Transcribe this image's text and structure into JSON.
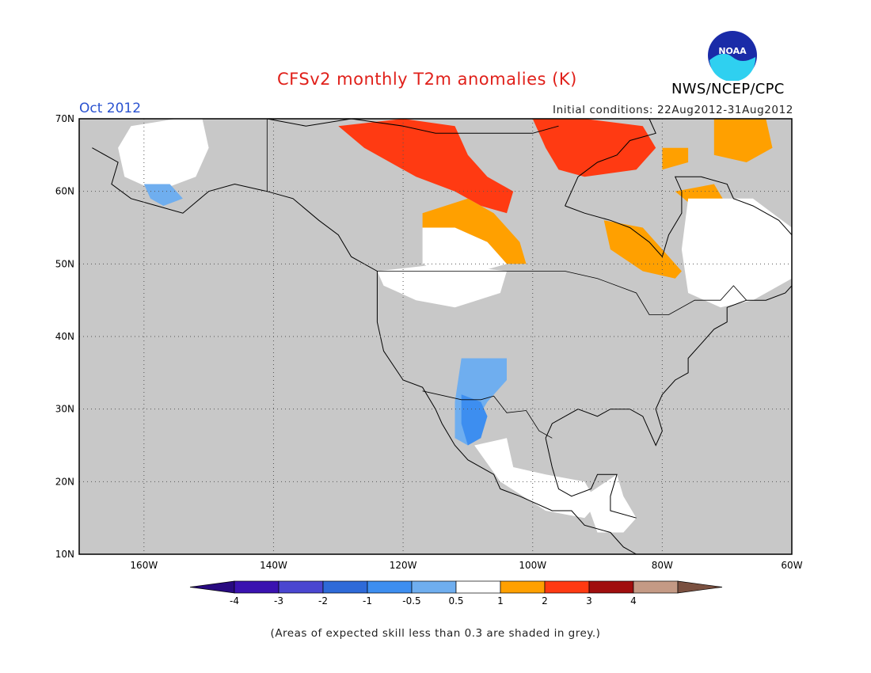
{
  "title": "CFSv2 monthly T2m anomalies (K)",
  "valid_month": "Oct 2012",
  "initial_conditions": "Initial conditions: 22Aug2012-31Aug2012",
  "agency": "NWS/NCEP/CPC",
  "logo_text": "NOAA",
  "footnote": "(Areas of expected skill less than 0.3 are shaded in grey.)",
  "map": {
    "lon_range": [
      -170,
      -60
    ],
    "lat_range": [
      10,
      70
    ],
    "lon_ticks": [
      {
        "value": -160,
        "label": "160W"
      },
      {
        "value": -140,
        "label": "140W"
      },
      {
        "value": -120,
        "label": "120W"
      },
      {
        "value": -100,
        "label": "100W"
      },
      {
        "value": -80,
        "label": "80W"
      },
      {
        "value": -60,
        "label": "60W"
      }
    ],
    "lat_ticks": [
      {
        "value": 10,
        "label": "10N"
      },
      {
        "value": 20,
        "label": "20N"
      },
      {
        "value": 30,
        "label": "30N"
      },
      {
        "value": 40,
        "label": "40N"
      },
      {
        "value": 50,
        "label": "50N"
      },
      {
        "value": 60,
        "label": "60N"
      },
      {
        "value": 70,
        "label": "70N"
      }
    ],
    "low_skill_color": "#c8c8c8",
    "neutral_color": "#ffffff",
    "anomaly_regions": [
      {
        "name": "alaska-neutral",
        "color": "#ffffff",
        "points": [
          [
            -162,
            69
          ],
          [
            -155,
            70
          ],
          [
            -151,
            70
          ],
          [
            -150,
            66
          ],
          [
            -152,
            62
          ],
          [
            -158,
            60
          ],
          [
            -163,
            62
          ],
          [
            -164,
            66
          ]
        ]
      },
      {
        "name": "alaska-cool",
        "color": "#6faeef",
        "points": [
          [
            -160,
            61
          ],
          [
            -156,
            61
          ],
          [
            -154,
            59
          ],
          [
            -157,
            58
          ],
          [
            -159,
            59
          ]
        ]
      },
      {
        "name": "hudson-warm-inner",
        "color": "#ff3a12",
        "points": [
          [
            -130,
            69
          ],
          [
            -120,
            70
          ],
          [
            -112,
            69
          ],
          [
            -110,
            65
          ],
          [
            -107,
            62
          ],
          [
            -103,
            60
          ],
          [
            -104,
            57
          ],
          [
            -108,
            58
          ],
          [
            -112,
            60
          ],
          [
            -118,
            62
          ],
          [
            -122,
            64
          ],
          [
            -126,
            66
          ]
        ]
      },
      {
        "name": "hudson-warm-outer",
        "color": "#ffa000",
        "points": [
          [
            -117,
            57
          ],
          [
            -110,
            59
          ],
          [
            -106,
            57
          ],
          [
            -102,
            53
          ],
          [
            -101,
            50
          ],
          [
            -104,
            50
          ],
          [
            -107,
            53
          ],
          [
            -112,
            55
          ],
          [
            -117,
            55
          ]
        ]
      },
      {
        "name": "prairie-neutral",
        "color": "#ffffff",
        "points": [
          [
            -117,
            55
          ],
          [
            -112,
            55
          ],
          [
            -107,
            53
          ],
          [
            -104,
            50
          ],
          [
            -108,
            49
          ],
          [
            -112,
            48
          ],
          [
            -117,
            50
          ]
        ]
      },
      {
        "name": "arctic-warm-east",
        "color": "#ff3a12",
        "points": [
          [
            -100,
            70
          ],
          [
            -92,
            70
          ],
          [
            -83,
            69
          ],
          [
            -81,
            66
          ],
          [
            -84,
            63
          ],
          [
            -92,
            62
          ],
          [
            -96,
            63
          ],
          [
            -98,
            66
          ]
        ]
      },
      {
        "name": "baffin-warm",
        "color": "#ffa000",
        "points": [
          [
            -80,
            66
          ],
          [
            -76,
            66
          ],
          [
            -76,
            64
          ],
          [
            -80,
            63
          ]
        ]
      },
      {
        "name": "labrador-warm",
        "color": "#ffa000",
        "points": [
          [
            -78,
            60
          ],
          [
            -72,
            61
          ],
          [
            -70,
            58
          ],
          [
            -74,
            57
          ]
        ]
      },
      {
        "name": "greenland-warm",
        "color": "#ffa000",
        "points": [
          [
            -72,
            70
          ],
          [
            -64,
            70
          ],
          [
            -63,
            66
          ],
          [
            -67,
            64
          ],
          [
            -72,
            65
          ]
        ]
      },
      {
        "name": "quebec-neutral",
        "color": "#ffffff",
        "points": [
          [
            -76,
            59
          ],
          [
            -66,
            59
          ],
          [
            -60,
            55
          ],
          [
            -60,
            48
          ],
          [
            -66,
            45
          ],
          [
            -71,
            44
          ],
          [
            -76,
            46
          ],
          [
            -77,
            52
          ]
        ]
      },
      {
        "name": "ontario-warm",
        "color": "#ffa000",
        "points": [
          [
            -89,
            56
          ],
          [
            -83,
            55
          ],
          [
            -80,
            52
          ],
          [
            -77,
            49
          ],
          [
            -78,
            48
          ],
          [
            -83,
            49
          ],
          [
            -88,
            52
          ]
        ]
      },
      {
        "name": "northwest-neutral",
        "color": "#ffffff",
        "points": [
          [
            -124,
            49
          ],
          [
            -114,
            50
          ],
          [
            -104,
            49
          ],
          [
            -105,
            46
          ],
          [
            -112,
            44
          ],
          [
            -118,
            45
          ],
          [
            -123,
            47
          ]
        ]
      },
      {
        "name": "southwest-cool",
        "color": "#6faeef",
        "points": [
          [
            -111,
            37
          ],
          [
            -104,
            37
          ],
          [
            -104,
            34
          ],
          [
            -107,
            31
          ],
          [
            -109,
            28
          ],
          [
            -110,
            25
          ],
          [
            -112,
            26
          ],
          [
            -112,
            31
          ]
        ]
      },
      {
        "name": "sonora-cool",
        "color": "#3d8ef0",
        "points": [
          [
            -111,
            32
          ],
          [
            -108,
            31
          ],
          [
            -107,
            29
          ],
          [
            -108,
            26
          ],
          [
            -110,
            25
          ],
          [
            -111,
            28
          ]
        ]
      },
      {
        "name": "mexico-neutral",
        "color": "#ffffff",
        "points": [
          [
            -109,
            25
          ],
          [
            -104,
            26
          ],
          [
            -103,
            22
          ],
          [
            -98,
            21
          ],
          [
            -92,
            20
          ],
          [
            -90,
            17
          ],
          [
            -92,
            15
          ],
          [
            -98,
            16
          ],
          [
            -105,
            20
          ]
        ]
      },
      {
        "name": "central-america-neutral",
        "color": "#ffffff",
        "points": [
          [
            -92,
            18
          ],
          [
            -87,
            21
          ],
          [
            -86,
            18
          ],
          [
            -84,
            15
          ],
          [
            -86,
            13
          ],
          [
            -90,
            13
          ]
        ]
      }
    ]
  },
  "legend": {
    "bins": [
      {
        "label": "-4",
        "color": "#3a12b0"
      },
      {
        "label": "-3",
        "color": "#4a46d0"
      },
      {
        "label": "-2",
        "color": "#2e6ad8"
      },
      {
        "label": "-1",
        "color": "#3d8ef0"
      },
      {
        "label": "-0.5",
        "color": "#6faeef"
      },
      {
        "label": "0.5",
        "color": "#ffffff"
      },
      {
        "label": "1",
        "color": "#ffa000"
      },
      {
        "label": "2",
        "color": "#ff3a12"
      },
      {
        "label": "3",
        "color": "#a00e0e"
      },
      {
        "label": "4",
        "color": "#c49a85"
      }
    ],
    "low_end_color": "#280a80",
    "high_end_color": "#7a5040"
  }
}
